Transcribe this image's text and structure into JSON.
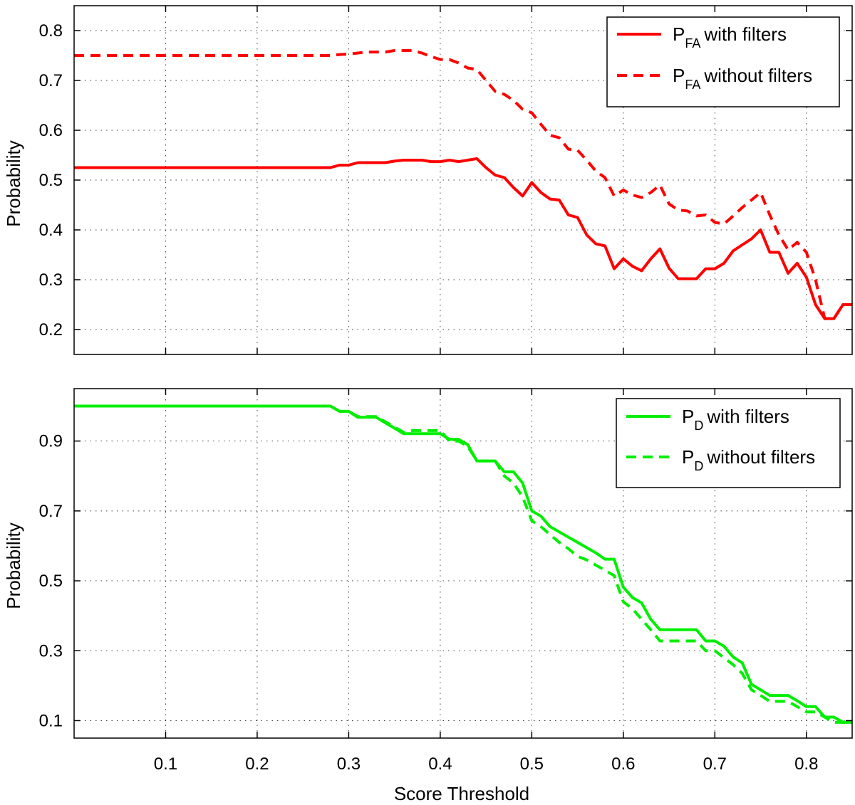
{
  "chart_data": [
    {
      "type": "line",
      "title": "",
      "xlabel": "",
      "ylabel": "Probability",
      "xlim": [
        0.0,
        0.85
      ],
      "ylim": [
        0.15,
        0.85
      ],
      "xticks": [
        0.1,
        0.2,
        0.3,
        0.4,
        0.5,
        0.6,
        0.7,
        0.8
      ],
      "xtick_labels_shown": false,
      "yticks": [
        0.2,
        0.3,
        0.4,
        0.5,
        0.6,
        0.7,
        0.8
      ],
      "ytick_labels": [
        "0.2",
        "0.3",
        "0.4",
        "0.5",
        "0.6",
        "0.7",
        "0.8"
      ],
      "grid": true,
      "legend_placement": "top-right",
      "series": [
        {
          "name": "P_FA with filters",
          "legend_main": "P",
          "legend_sub": "FA",
          "legend_text": "with filters",
          "color": "#ff0000",
          "style": "solid",
          "x": [
            0.0,
            0.1,
            0.2,
            0.28,
            0.29,
            0.3,
            0.31,
            0.32,
            0.33,
            0.34,
            0.35,
            0.36,
            0.37,
            0.38,
            0.39,
            0.4,
            0.41,
            0.42,
            0.43,
            0.44,
            0.45,
            0.46,
            0.47,
            0.48,
            0.49,
            0.5,
            0.51,
            0.52,
            0.53,
            0.54,
            0.55,
            0.56,
            0.57,
            0.58,
            0.59,
            0.6,
            0.61,
            0.62,
            0.63,
            0.64,
            0.65,
            0.66,
            0.67,
            0.68,
            0.69,
            0.7,
            0.71,
            0.72,
            0.73,
            0.74,
            0.75,
            0.76,
            0.77,
            0.78,
            0.79,
            0.8,
            0.81,
            0.82,
            0.83,
            0.84,
            0.85
          ],
          "y": [
            0.525,
            0.525,
            0.525,
            0.525,
            0.53,
            0.53,
            0.535,
            0.535,
            0.535,
            0.535,
            0.538,
            0.54,
            0.54,
            0.54,
            0.537,
            0.537,
            0.54,
            0.537,
            0.54,
            0.543,
            0.525,
            0.51,
            0.505,
            0.485,
            0.468,
            0.495,
            0.475,
            0.462,
            0.46,
            0.43,
            0.425,
            0.39,
            0.372,
            0.368,
            0.322,
            0.342,
            0.327,
            0.318,
            0.342,
            0.362,
            0.323,
            0.302,
            0.302,
            0.302,
            0.322,
            0.322,
            0.333,
            0.358,
            0.37,
            0.382,
            0.4,
            0.355,
            0.355,
            0.313,
            0.333,
            0.305,
            0.25,
            0.222,
            0.222,
            0.25,
            0.25
          ]
        },
        {
          "name": "P_FA without filters",
          "legend_main": "P",
          "legend_sub": "FA",
          "legend_text": "without filters",
          "color": "#ff0000",
          "style": "dashed",
          "x": [
            0.0,
            0.1,
            0.2,
            0.28,
            0.29,
            0.3,
            0.31,
            0.32,
            0.33,
            0.34,
            0.35,
            0.36,
            0.37,
            0.38,
            0.39,
            0.4,
            0.41,
            0.42,
            0.43,
            0.44,
            0.45,
            0.46,
            0.47,
            0.48,
            0.49,
            0.5,
            0.51,
            0.52,
            0.53,
            0.54,
            0.55,
            0.56,
            0.57,
            0.58,
            0.59,
            0.6,
            0.61,
            0.62,
            0.63,
            0.64,
            0.65,
            0.66,
            0.67,
            0.68,
            0.69,
            0.7,
            0.71,
            0.72,
            0.73,
            0.74,
            0.75,
            0.76,
            0.77,
            0.78,
            0.79,
            0.8,
            0.81,
            0.82,
            0.83,
            0.84,
            0.85
          ],
          "y": [
            0.75,
            0.75,
            0.75,
            0.75,
            0.752,
            0.753,
            0.755,
            0.757,
            0.757,
            0.757,
            0.76,
            0.76,
            0.76,
            0.755,
            0.748,
            0.742,
            0.742,
            0.735,
            0.725,
            0.722,
            0.7,
            0.678,
            0.672,
            0.66,
            0.642,
            0.635,
            0.612,
            0.59,
            0.585,
            0.562,
            0.56,
            0.54,
            0.518,
            0.505,
            0.468,
            0.48,
            0.47,
            0.465,
            0.475,
            0.49,
            0.452,
            0.44,
            0.438,
            0.428,
            0.43,
            0.415,
            0.412,
            0.428,
            0.445,
            0.46,
            0.475,
            0.43,
            0.39,
            0.36,
            0.375,
            0.355,
            0.3,
            0.222,
            0.222,
            0.25,
            0.25
          ]
        }
      ]
    },
    {
      "type": "line",
      "title": "",
      "xlabel": "Score Threshold",
      "ylabel": "Probability",
      "xlim": [
        0.0,
        0.85
      ],
      "ylim": [
        0.05,
        1.05
      ],
      "xticks": [
        0.1,
        0.2,
        0.3,
        0.4,
        0.5,
        0.6,
        0.7,
        0.8
      ],
      "xtick_labels": [
        "0.1",
        "0.2",
        "0.3",
        "0.4",
        "0.5",
        "0.6",
        "0.7",
        "0.8"
      ],
      "yticks": [
        0.1,
        0.3,
        0.5,
        0.7,
        0.9
      ],
      "ytick_labels": [
        "0.1",
        "0.3",
        "0.5",
        "0.7",
        "0.9"
      ],
      "grid": true,
      "legend_placement": "top-right",
      "series": [
        {
          "name": "P_D with filters",
          "legend_main": "P",
          "legend_sub": "D",
          "legend_text": "with filters",
          "color": "#00ee00",
          "style": "solid",
          "x": [
            0.0,
            0.1,
            0.2,
            0.28,
            0.29,
            0.3,
            0.31,
            0.32,
            0.33,
            0.34,
            0.35,
            0.36,
            0.37,
            0.38,
            0.39,
            0.4,
            0.41,
            0.42,
            0.43,
            0.44,
            0.45,
            0.46,
            0.47,
            0.48,
            0.49,
            0.5,
            0.51,
            0.52,
            0.53,
            0.54,
            0.55,
            0.56,
            0.57,
            0.58,
            0.59,
            0.6,
            0.61,
            0.62,
            0.63,
            0.64,
            0.65,
            0.66,
            0.67,
            0.68,
            0.69,
            0.7,
            0.71,
            0.72,
            0.73,
            0.74,
            0.75,
            0.76,
            0.77,
            0.78,
            0.79,
            0.8,
            0.81,
            0.82,
            0.83,
            0.84,
            0.85
          ],
          "y": [
            1.0,
            1.0,
            1.0,
            1.0,
            0.985,
            0.985,
            0.968,
            0.968,
            0.968,
            0.952,
            0.937,
            0.921,
            0.921,
            0.921,
            0.921,
            0.921,
            0.905,
            0.905,
            0.89,
            0.843,
            0.843,
            0.843,
            0.812,
            0.812,
            0.78,
            0.7,
            0.685,
            0.655,
            0.64,
            0.625,
            0.61,
            0.595,
            0.58,
            0.562,
            0.562,
            0.482,
            0.452,
            0.437,
            0.39,
            0.36,
            0.36,
            0.36,
            0.36,
            0.36,
            0.328,
            0.328,
            0.313,
            0.282,
            0.265,
            0.204,
            0.188,
            0.172,
            0.172,
            0.172,
            0.157,
            0.14,
            0.14,
            0.11,
            0.11,
            0.095,
            0.095
          ]
        },
        {
          "name": "P_D without filters",
          "legend_main": "P",
          "legend_sub": "D",
          "legend_text": "without filters",
          "color": "#00ee00",
          "style": "dashed",
          "x": [
            0.0,
            0.1,
            0.2,
            0.28,
            0.29,
            0.3,
            0.31,
            0.32,
            0.33,
            0.34,
            0.35,
            0.36,
            0.37,
            0.38,
            0.39,
            0.4,
            0.41,
            0.42,
            0.43,
            0.44,
            0.45,
            0.46,
            0.47,
            0.48,
            0.49,
            0.5,
            0.51,
            0.52,
            0.53,
            0.54,
            0.55,
            0.56,
            0.57,
            0.58,
            0.59,
            0.6,
            0.61,
            0.62,
            0.63,
            0.64,
            0.65,
            0.66,
            0.67,
            0.68,
            0.69,
            0.7,
            0.71,
            0.72,
            0.73,
            0.74,
            0.75,
            0.76,
            0.77,
            0.78,
            0.79,
            0.8,
            0.81,
            0.82,
            0.83,
            0.84,
            0.85
          ],
          "y": [
            1.0,
            1.0,
            1.0,
            1.0,
            0.985,
            0.985,
            0.97,
            0.97,
            0.97,
            0.955,
            0.94,
            0.925,
            0.93,
            0.93,
            0.93,
            0.93,
            0.9,
            0.9,
            0.885,
            0.843,
            0.843,
            0.843,
            0.8,
            0.78,
            0.74,
            0.672,
            0.655,
            0.632,
            0.61,
            0.592,
            0.57,
            0.56,
            0.545,
            0.53,
            0.515,
            0.44,
            0.42,
            0.39,
            0.36,
            0.328,
            0.328,
            0.328,
            0.328,
            0.328,
            0.3,
            0.3,
            0.28,
            0.26,
            0.235,
            0.188,
            0.172,
            0.155,
            0.155,
            0.155,
            0.14,
            0.125,
            0.125,
            0.11,
            0.095,
            0.095,
            0.095
          ]
        }
      ]
    }
  ]
}
